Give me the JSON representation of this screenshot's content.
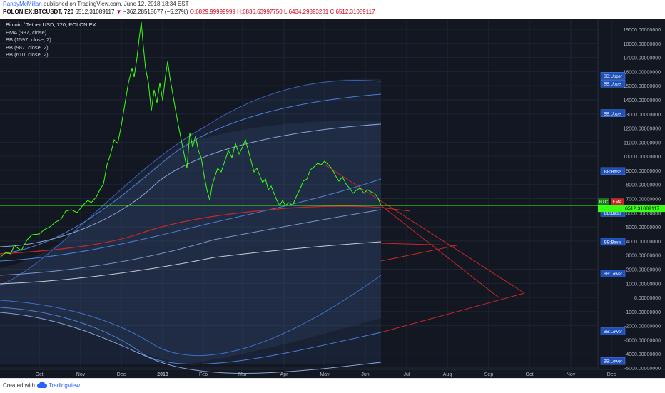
{
  "header": {
    "author": "RandyMcMillan",
    "published": "published on TradingView.com, June 12, 2018 18:34 EST",
    "symbol": "POLONIEX:BTCUSDT, 720",
    "last": "6512.31089117",
    "change": "−362.28518677 (−5.27%)",
    "open": "O:6829.99999999",
    "high": "H:6836.63997750",
    "low": "L:6434.29893281",
    "close": "C:6512.31089117"
  },
  "legend": {
    "title": "Bitcoin / Tether USD, 720, POLONIEX",
    "items": [
      "EMA (987, close)",
      "BB (1597, close, 2)",
      "BB (987, close, 2)",
      "BB (610, close, 2)"
    ]
  },
  "price_axis": {
    "labels": [
      "19000.00000000",
      "18000.00000000",
      "17000.00000000",
      "16000.00000000",
      "15000.00000000",
      "14000.00000000",
      "13000.00000000",
      "12000.00000000",
      "11000.00000000",
      "10000.00000000",
      "9000.00000000",
      "8000.00000000",
      "7000.00000000",
      "6000.00000000",
      "5000.00000000",
      "4000.00000000",
      "3000.00000000",
      "2000.00000000",
      "1000.00000000",
      "0.00000000",
      "-1000.00000000",
      "-2000.00000000",
      "-3000.00000000",
      "-4000.00000000",
      "-5000.00000000"
    ],
    "values": [
      19000,
      18000,
      17000,
      16000,
      15000,
      14000,
      13000,
      12000,
      11000,
      10000,
      9000,
      8000,
      7000,
      6000,
      5000,
      4000,
      3000,
      2000,
      1000,
      0,
      -1000,
      -2000,
      -3000,
      -4000,
      -5000
    ],
    "badges": [
      {
        "label": "BB:Upper",
        "value": 15700
      },
      {
        "label": "BB:Upper",
        "value": 15150
      },
      {
        "label": "BB:Upper",
        "value": 13050
      },
      {
        "label": "BB:Basis",
        "value": 8950
      },
      {
        "label": "BB:Basis",
        "value": 6000
      },
      {
        "label": "BB:Basis",
        "value": 3950
      },
      {
        "label": "BB:Lower",
        "value": 1700
      },
      {
        "label": "BB:Lower",
        "value": -2400
      },
      {
        "label": "BB:Lower",
        "value": -4500
      }
    ],
    "btc_label": "BTC",
    "ema_label": "EMA",
    "current_price": "6512.31089117",
    "current_value": 6512.31
  },
  "time_axis": [
    "Oct",
    "Nov",
    "Dec",
    "2018",
    "Feb",
    "Mar",
    "Apr",
    "May",
    "Jun",
    "Jul",
    "Aug",
    "Sep",
    "Oct",
    "Nov",
    "Dec"
  ],
  "footer": {
    "created": "Created with",
    "brand": "TradingView"
  },
  "colors": {
    "background": "#131722",
    "price": "#39ff14",
    "ema": "#c62828",
    "bb1597": "#8aa4d6",
    "bb987": "#4a7fd8",
    "bb610": "#3b6fcc",
    "trendline": "#c62828",
    "badge": "#2962ff"
  }
}
